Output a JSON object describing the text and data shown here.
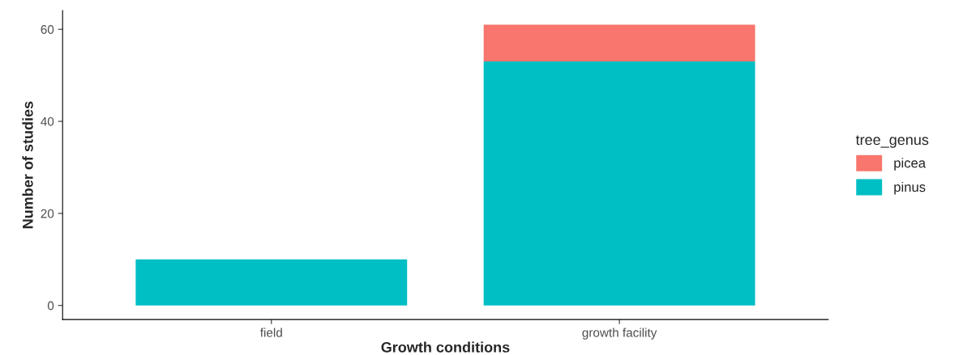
{
  "chart_data": {
    "type": "bar",
    "stacked": true,
    "xlabel": "Growth conditions",
    "ylabel": "Number of studies",
    "legend_title": "tree_genus",
    "categories": [
      "field",
      "growth facility"
    ],
    "series": [
      {
        "name": "pinus",
        "color": "#00bfc4",
        "values": [
          10,
          53
        ]
      },
      {
        "name": "picea",
        "color": "#f8766d",
        "values": [
          null,
          8
        ]
      }
    ],
    "ylim": [
      -3.05,
      64.05
    ],
    "yticks": [
      0,
      20,
      40,
      60
    ],
    "grid": false,
    "legend": "right"
  }
}
